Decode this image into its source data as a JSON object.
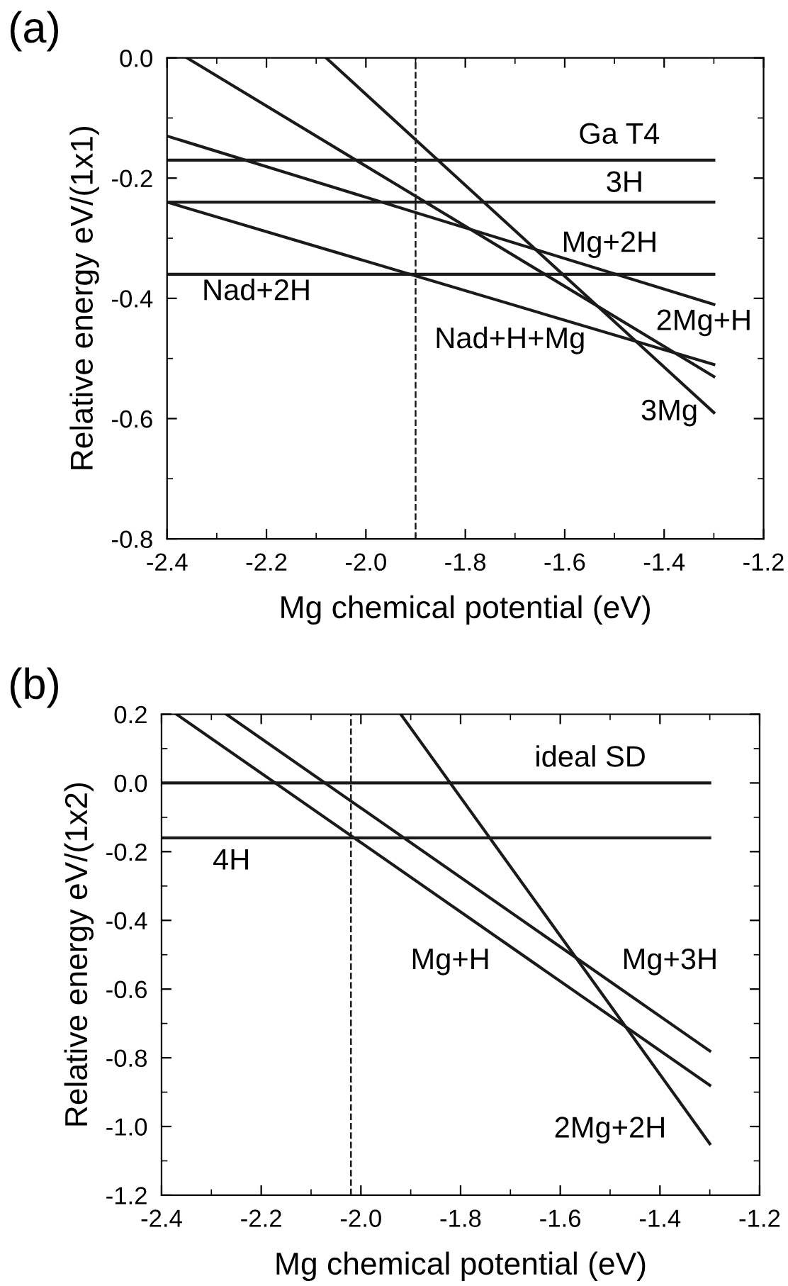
{
  "chart_data": [
    {
      "type": "line",
      "title": "(a)",
      "xlabel": "Mg chemical potential (eV)",
      "ylabel": "Relative energy eV/(1x1)",
      "xlim": [
        -2.4,
        -1.2
      ],
      "xticks": [
        {
          "value": -2.4,
          "label": "-2.4"
        },
        {
          "value": -2.2,
          "label": "-2.2"
        },
        {
          "value": -2.0,
          "label": "-2.0"
        },
        {
          "value": -1.8,
          "label": "-1.8"
        },
        {
          "value": -1.6,
          "label": "-1.6"
        },
        {
          "value": -1.4,
          "label": "-1.4"
        },
        {
          "value": -1.2,
          "label": "-1.2"
        }
      ],
      "ylim": [
        -0.8,
        0.0
      ],
      "yticks": [
        {
          "value": -0.8,
          "label": "-0.8"
        },
        {
          "value": -0.6,
          "label": "-0.6"
        },
        {
          "value": -0.4,
          "label": "-0.4"
        },
        {
          "value": -0.2,
          "label": "-0.2"
        },
        {
          "value": 0.0,
          "label": "0.0"
        }
      ],
      "grid": false,
      "legend": false,
      "marker": "none",
      "line_style": "solid",
      "series": [
        {
          "color": "#1a1a1a",
          "x": [
            -2.4,
            -1.3
          ],
          "values": [
            -0.17,
            -0.17
          ]
        },
        {
          "color": "#1a1a1a",
          "x": [
            -2.4,
            -1.3
          ],
          "values": [
            -0.24,
            -0.24
          ]
        },
        {
          "color": "#1a1a1a",
          "x": [
            -2.4,
            -1.3
          ],
          "values": [
            -0.36,
            -0.36
          ]
        },
        {
          "color": "#1a1a1a",
          "x": [
            -2.4,
            -1.3
          ],
          "values": [
            -0.13,
            -0.41
          ]
        },
        {
          "color": "#1a1a1a",
          "x": [
            -2.4,
            -1.3
          ],
          "values": [
            -0.24,
            -0.51
          ]
        },
        {
          "color": "#1a1a1a",
          "x": [
            -2.36,
            -1.3
          ],
          "values": [
            0.0,
            -0.53
          ]
        },
        {
          "color": "#1a1a1a",
          "x": [
            -2.08,
            -1.3
          ],
          "values": [
            0.0,
            -0.59
          ]
        }
      ],
      "ref_lines": [
        {
          "axis": "x",
          "value": -1.9,
          "color": "#1a1a1a",
          "line_style": "dashed"
        }
      ],
      "annotations": [
        "Ga T4",
        "3H",
        "Mg+2H",
        "Nad+2H",
        "Nad+H+Mg",
        "2Mg+H",
        "3Mg"
      ]
    },
    {
      "type": "line",
      "title": "(b)",
      "xlabel": "Mg chemical potential (eV)",
      "ylabel": "Relative energy eV/(1x2)",
      "xlim": [
        -2.4,
        -1.2
      ],
      "xticks": [
        {
          "value": -2.4,
          "label": "-2.4"
        },
        {
          "value": -2.2,
          "label": "-2.2"
        },
        {
          "value": -2.0,
          "label": "-2.0"
        },
        {
          "value": -1.8,
          "label": "-1.8"
        },
        {
          "value": -1.6,
          "label": "-1.6"
        },
        {
          "value": -1.4,
          "label": "-1.4"
        },
        {
          "value": -1.2,
          "label": "-1.2"
        }
      ],
      "ylim": [
        -1.2,
        0.2
      ],
      "yticks": [
        {
          "value": -1.2,
          "label": "-1.2"
        },
        {
          "value": -1.0,
          "label": "-1.0"
        },
        {
          "value": -0.8,
          "label": "-0.8"
        },
        {
          "value": -0.6,
          "label": "-0.6"
        },
        {
          "value": -0.4,
          "label": "-0.4"
        },
        {
          "value": -0.2,
          "label": "-0.2"
        },
        {
          "value": 0.0,
          "label": "0.0"
        },
        {
          "value": 0.2,
          "label": "0.2"
        }
      ],
      "grid": false,
      "legend": false,
      "marker": "none",
      "line_style": "solid",
      "series": [
        {
          "color": "#1a1a1a",
          "x": [
            -2.4,
            -1.3
          ],
          "values": [
            0.0,
            0.0
          ]
        },
        {
          "color": "#1a1a1a",
          "x": [
            -2.4,
            -1.3
          ],
          "values": [
            -0.16,
            -0.16
          ]
        },
        {
          "color": "#1a1a1a",
          "x": [
            -2.37,
            -1.3
          ],
          "values": [
            0.2,
            -0.88
          ]
        },
        {
          "color": "#1a1a1a",
          "x": [
            -2.27,
            -1.3
          ],
          "values": [
            0.2,
            -0.78
          ]
        },
        {
          "color": "#1a1a1a",
          "x": [
            -1.92,
            -1.3
          ],
          "values": [
            0.2,
            -1.05
          ]
        }
      ],
      "ref_lines": [
        {
          "axis": "x",
          "value": -2.02,
          "color": "#1a1a1a",
          "line_style": "dashed"
        }
      ],
      "annotations": [
        "ideal SD",
        "4H",
        "Mg+H",
        "Mg+3H",
        "2Mg+2H"
      ]
    }
  ]
}
